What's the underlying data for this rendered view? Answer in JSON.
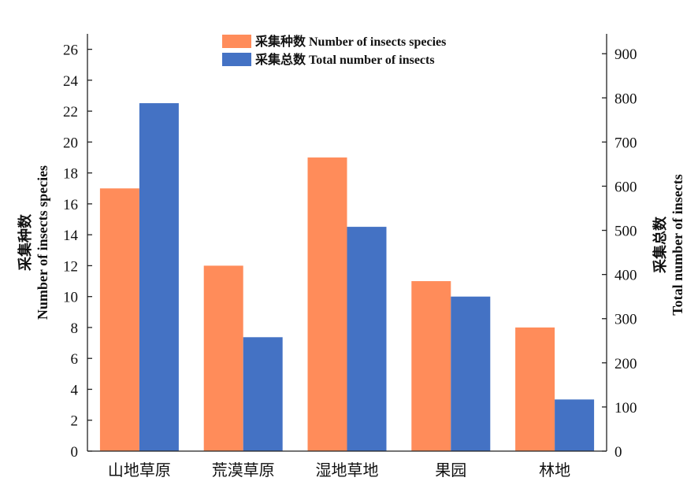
{
  "chart_data": {
    "type": "bar",
    "categories": [
      "山地草原",
      "荒漠草原",
      "湿地草地",
      "果园",
      "林地"
    ],
    "series": [
      {
        "name": "采集种数 Number of insects species",
        "values": [
          17,
          12,
          19,
          11,
          8
        ],
        "color": "#FF8C5A",
        "axis": "left"
      },
      {
        "name": "采集总数 Total number of insects",
        "values": [
          788,
          258,
          508,
          350,
          117
        ],
        "color": "#4472C4",
        "axis": "right"
      }
    ],
    "ylabel_left": [
      "采集种数",
      "Number of insects species"
    ],
    "ylabel_right": [
      "采集总数",
      "Total number of insects"
    ],
    "ylim_left": [
      0,
      27
    ],
    "ylim_right": [
      0,
      945
    ],
    "yticks_left": [
      "0",
      "2",
      "4",
      "6",
      "8",
      "10",
      "12",
      "14",
      "16",
      "18",
      "20",
      "22",
      "24",
      "26"
    ],
    "yticks_right": [
      "0",
      "100",
      "200",
      "300",
      "400",
      "500",
      "600",
      "700",
      "800",
      "900"
    ],
    "legend_position": "top-center",
    "grid": false
  }
}
